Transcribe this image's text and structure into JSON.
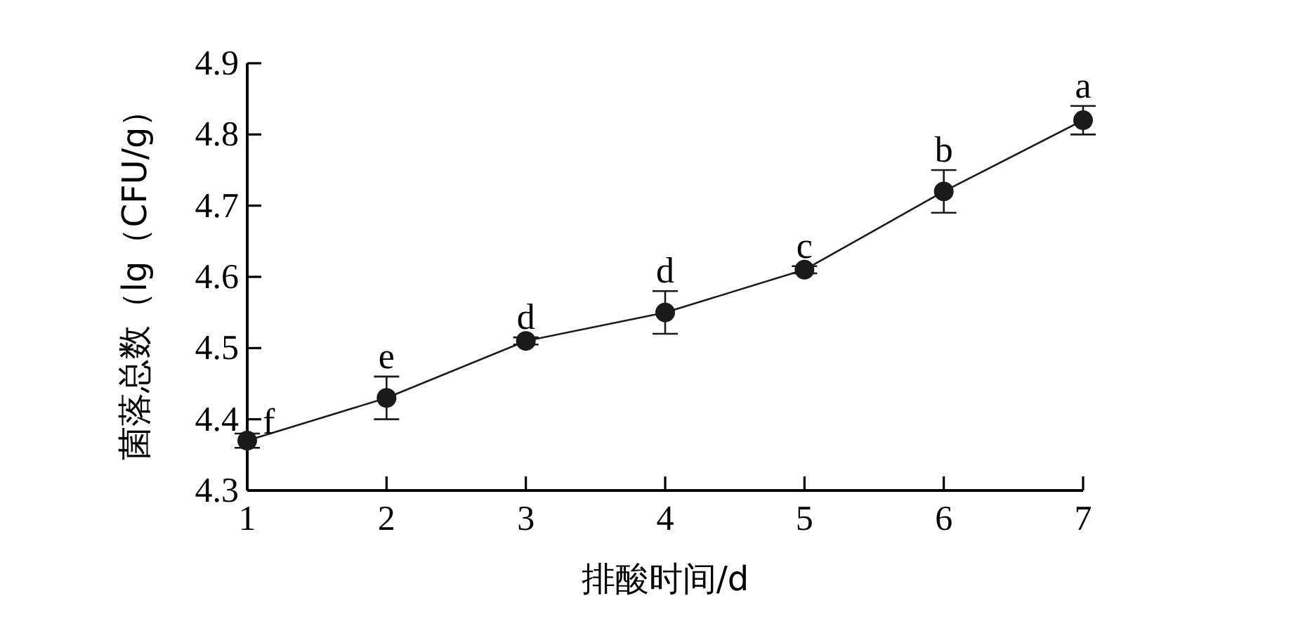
{
  "chart_data": {
    "type": "line",
    "xlabel": "排酸时间/d",
    "ylabel": "菌落总数（lg（CFU/g）",
    "x": [
      1,
      2,
      3,
      4,
      5,
      6,
      7
    ],
    "series": [
      {
        "color": "#1a1a1a",
        "values": [
          4.37,
          4.43,
          4.51,
          4.55,
          4.61,
          4.72,
          4.82
        ],
        "errors": [
          0.01,
          0.03,
          0.005,
          0.03,
          0.005,
          0.03,
          0.02
        ]
      }
    ],
    "xlim": [
      1,
      7
    ],
    "xticks": [
      1,
      2,
      3,
      4,
      5,
      6,
      7
    ],
    "ylim": [
      4.3,
      4.9
    ],
    "yticks": [
      4.3,
      4.4,
      4.5,
      4.6,
      4.7,
      4.8,
      4.9
    ],
    "marker": "circle",
    "line_style": "solid",
    "grid": false,
    "annotations": [
      {
        "text": "f",
        "x": 1,
        "y": 4.37
      },
      {
        "text": "e",
        "x": 2,
        "y": 4.46
      },
      {
        "text": "d",
        "x": 3,
        "y": 4.515
      },
      {
        "text": "d",
        "x": 4,
        "y": 4.58
      },
      {
        "text": "c",
        "x": 5,
        "y": 4.615
      },
      {
        "text": "b",
        "x": 6,
        "y": 4.75
      },
      {
        "text": "a",
        "x": 7,
        "y": 4.84
      }
    ]
  }
}
